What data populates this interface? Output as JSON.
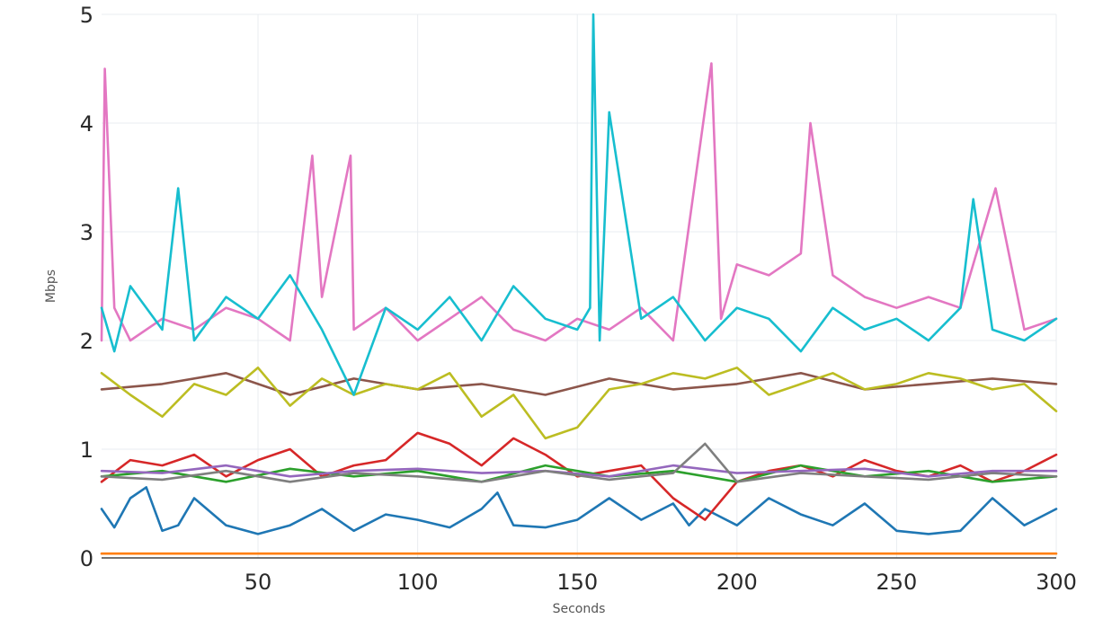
{
  "chart_data": {
    "type": "line",
    "title": "",
    "xlabel": "Seconds",
    "ylabel": "Mbps",
    "xlim": [
      1,
      300
    ],
    "ylim": [
      0,
      5
    ],
    "xticks": [
      50,
      100,
      150,
      200,
      250,
      300
    ],
    "xtick_labels": [
      "50",
      "100",
      "150",
      "200",
      "250",
      "300"
    ],
    "yticks": [
      0,
      1,
      2,
      3,
      4,
      5
    ],
    "ytick_labels": [
      "0",
      "1",
      "2",
      "3",
      "4",
      "5"
    ],
    "grid": true,
    "legend": "none",
    "series": [
      {
        "color": "#ff7f0e",
        "x": [
          1,
          50,
          100,
          150,
          200,
          250,
          300
        ],
        "y": [
          0.04,
          0.04,
          0.04,
          0.04,
          0.04,
          0.04,
          0.04
        ]
      },
      {
        "color": "#1f77b4",
        "x": [
          1,
          5,
          10,
          15,
          20,
          25,
          30,
          40,
          50,
          60,
          70,
          80,
          90,
          100,
          110,
          120,
          125,
          130,
          140,
          150,
          160,
          170,
          180,
          185,
          190,
          200,
          210,
          220,
          230,
          240,
          250,
          260,
          270,
          280,
          290,
          300
        ],
        "y": [
          0.45,
          0.28,
          0.55,
          0.65,
          0.25,
          0.3,
          0.55,
          0.3,
          0.22,
          0.3,
          0.45,
          0.25,
          0.4,
          0.35,
          0.28,
          0.45,
          0.6,
          0.3,
          0.28,
          0.35,
          0.55,
          0.35,
          0.5,
          0.3,
          0.45,
          0.3,
          0.55,
          0.4,
          0.3,
          0.5,
          0.25,
          0.22,
          0.25,
          0.55,
          0.3,
          0.45
        ]
      },
      {
        "color": "#d62728",
        "x": [
          1,
          10,
          20,
          30,
          40,
          50,
          60,
          70,
          80,
          90,
          100,
          110,
          120,
          130,
          140,
          150,
          160,
          170,
          180,
          190,
          200,
          210,
          220,
          230,
          240,
          250,
          260,
          270,
          280,
          290,
          300
        ],
        "y": [
          0.7,
          0.9,
          0.85,
          0.95,
          0.75,
          0.9,
          1.0,
          0.75,
          0.85,
          0.9,
          1.15,
          1.05,
          0.85,
          1.1,
          0.95,
          0.75,
          0.8,
          0.85,
          0.55,
          0.35,
          0.7,
          0.8,
          0.85,
          0.75,
          0.9,
          0.8,
          0.75,
          0.85,
          0.7,
          0.8,
          0.95
        ]
      },
      {
        "color": "#2ca02c",
        "x": [
          1,
          20,
          40,
          60,
          80,
          100,
          120,
          140,
          160,
          180,
          200,
          220,
          240,
          260,
          280,
          300
        ],
        "y": [
          0.75,
          0.8,
          0.7,
          0.82,
          0.75,
          0.8,
          0.7,
          0.85,
          0.75,
          0.8,
          0.7,
          0.85,
          0.75,
          0.8,
          0.7,
          0.75
        ]
      },
      {
        "color": "#9467bd",
        "x": [
          1,
          20,
          40,
          60,
          80,
          100,
          120,
          140,
          160,
          180,
          200,
          220,
          240,
          260,
          280,
          300
        ],
        "y": [
          0.8,
          0.78,
          0.85,
          0.75,
          0.8,
          0.82,
          0.78,
          0.8,
          0.75,
          0.85,
          0.78,
          0.8,
          0.82,
          0.75,
          0.8,
          0.8
        ]
      },
      {
        "color": "#7f7f7f",
        "x": [
          1,
          20,
          40,
          60,
          80,
          100,
          120,
          140,
          160,
          180,
          190,
          200,
          220,
          240,
          260,
          280,
          300
        ],
        "y": [
          0.75,
          0.72,
          0.8,
          0.7,
          0.78,
          0.75,
          0.7,
          0.8,
          0.72,
          0.78,
          1.05,
          0.7,
          0.78,
          0.75,
          0.72,
          0.78,
          0.75
        ]
      },
      {
        "color": "#8c564b",
        "x": [
          1,
          20,
          40,
          60,
          80,
          100,
          120,
          140,
          160,
          180,
          200,
          220,
          240,
          260,
          280,
          300
        ],
        "y": [
          1.55,
          1.6,
          1.7,
          1.5,
          1.65,
          1.55,
          1.6,
          1.5,
          1.65,
          1.55,
          1.6,
          1.7,
          1.55,
          1.6,
          1.65,
          1.6
        ]
      },
      {
        "color": "#bcbd22",
        "x": [
          1,
          10,
          20,
          30,
          40,
          50,
          60,
          70,
          80,
          90,
          100,
          110,
          120,
          130,
          140,
          150,
          160,
          170,
          180,
          190,
          200,
          210,
          220,
          230,
          240,
          250,
          260,
          270,
          280,
          290,
          300
        ],
        "y": [
          1.7,
          1.5,
          1.3,
          1.6,
          1.5,
          1.75,
          1.4,
          1.65,
          1.5,
          1.6,
          1.55,
          1.7,
          1.3,
          1.5,
          1.1,
          1.2,
          1.55,
          1.6,
          1.7,
          1.65,
          1.75,
          1.5,
          1.6,
          1.7,
          1.55,
          1.6,
          1.7,
          1.65,
          1.55,
          1.6,
          1.35
        ]
      },
      {
        "color": "#e377c2",
        "x": [
          1,
          2,
          5,
          10,
          20,
          30,
          40,
          50,
          60,
          67,
          70,
          79,
          80,
          90,
          100,
          110,
          120,
          130,
          140,
          150,
          160,
          170,
          180,
          192,
          195,
          200,
          210,
          220,
          223,
          230,
          240,
          250,
          260,
          270,
          281,
          290,
          300
        ],
        "y": [
          2.0,
          4.5,
          2.3,
          2.0,
          2.2,
          2.1,
          2.3,
          2.2,
          2.0,
          3.7,
          2.4,
          3.7,
          2.1,
          2.3,
          2.0,
          2.2,
          2.4,
          2.1,
          2.0,
          2.2,
          2.1,
          2.3,
          2.0,
          4.55,
          2.2,
          2.7,
          2.6,
          2.8,
          4.0,
          2.6,
          2.4,
          2.3,
          2.4,
          2.3,
          3.4,
          2.1,
          2.2
        ]
      },
      {
        "color": "#17becf",
        "x": [
          1,
          5,
          10,
          20,
          25,
          30,
          40,
          50,
          60,
          70,
          80,
          90,
          100,
          110,
          120,
          130,
          140,
          150,
          154,
          155,
          157,
          160,
          170,
          180,
          190,
          200,
          210,
          220,
          230,
          240,
          250,
          260,
          270,
          274,
          280,
          290,
          300
        ],
        "y": [
          2.3,
          1.9,
          2.5,
          2.1,
          3.4,
          2.0,
          2.4,
          2.2,
          2.6,
          2.1,
          1.5,
          2.3,
          2.1,
          2.4,
          2.0,
          2.5,
          2.2,
          2.1,
          2.3,
          5.0,
          2.0,
          4.1,
          2.2,
          2.4,
          2.0,
          2.3,
          2.2,
          1.9,
          2.3,
          2.1,
          2.2,
          2.0,
          2.3,
          3.3,
          2.1,
          2.0,
          2.2
        ]
      }
    ]
  }
}
